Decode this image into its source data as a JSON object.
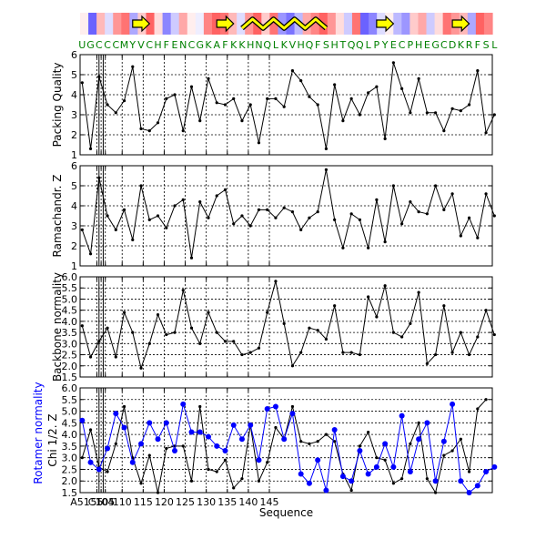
{
  "chart_data": {
    "type": "line",
    "sequence": "UGCCCMYVCHFENCGKAFKKHNQLKVHQFSHTQQLPYECPHEGCDKRFSL",
    "x_range": [
      51,
      149
    ],
    "sequence_label": "Sequence",
    "x_ticks": [
      {
        "value": 51,
        "label": "A51"
      },
      {
        "value": 55,
        "label": "55"
      },
      {
        "value": 56,
        "label": "C104"
      },
      {
        "value": 57,
        "label": "105"
      },
      {
        "value": 61,
        "label": "110"
      },
      {
        "value": 66,
        "label": "115"
      },
      {
        "value": 71,
        "label": "120"
      },
      {
        "value": 76,
        "label": "125"
      },
      {
        "value": 81,
        "label": "130"
      },
      {
        "value": 86,
        "label": "135"
      },
      {
        "value": 91,
        "label": "140"
      },
      {
        "value": 96,
        "label": "145"
      }
    ],
    "breaks": [
      55.5,
      56.5
    ],
    "secondary_structure": [
      {
        "type": "strand",
        "start": 57,
        "end": 59
      },
      {
        "type": "strand",
        "start": 67,
        "end": 69
      },
      {
        "type": "helix",
        "start": 70,
        "end": 80
      },
      {
        "type": "strand",
        "start": 86,
        "end": 88
      },
      {
        "type": "strand",
        "start": 95,
        "end": 97
      }
    ],
    "ribbon_values": [
      0.1,
      -0.9,
      0.4,
      -0.2,
      0.6,
      0.8,
      -0.5,
      0.3,
      0.9,
      0.2,
      -0.7,
      -0.3,
      0.5,
      0.1,
      -0.1,
      0.7,
      0.9,
      0.8,
      0.4,
      -0.2,
      0.6,
      0.9,
      0.3,
      0.8,
      -0.6,
      -0.8,
      -0.4,
      0.5,
      0.7,
      0.9,
      0.6,
      0.2,
      -0.3,
      0.8,
      -0.9,
      -0.7,
      -0.2,
      0.1,
      -0.4,
      -0.6,
      0.3,
      0.5,
      -0.3,
      0.2,
      0.8,
      0.6,
      0.4,
      -0.5,
      0.9,
      0.7
    ],
    "panels": [
      {
        "ylabel": "Packing Quality",
        "ylim": [
          1,
          6
        ],
        "yticks": [
          1,
          2,
          3,
          4,
          5,
          6
        ],
        "series": [
          {
            "color": "#000000",
            "values": [
              4.6,
              1.3,
              4.9,
              3.5,
              3.1,
              3.7,
              5.4,
              2.3,
              2.2,
              2.6,
              3.8,
              4.0,
              2.2,
              4.4,
              2.7,
              4.8,
              3.6,
              3.5,
              3.8,
              2.7,
              3.5,
              1.6,
              3.8,
              3.8,
              3.4,
              5.2,
              4.7,
              3.9,
              3.5,
              1.3,
              4.5,
              2.7,
              3.8,
              3.0,
              4.1,
              4.4,
              1.8,
              5.6,
              4.3,
              3.1,
              4.8,
              3.1,
              3.1,
              2.2,
              3.3,
              3.2,
              3.5,
              5.2,
              2.1,
              3.0
            ]
          }
        ]
      },
      {
        "ylabel": "Ramachandr. Z",
        "ylim": [
          1,
          6
        ],
        "yticks": [
          1,
          2,
          3,
          4,
          5,
          6
        ],
        "series": [
          {
            "color": "#000000",
            "values": [
              2.8,
              1.6,
              5.4,
              3.5,
              2.8,
              3.8,
              2.3,
              5.0,
              3.3,
              3.5,
              2.9,
              4.0,
              4.3,
              1.4,
              4.2,
              3.4,
              4.5,
              4.8,
              3.1,
              3.5,
              3.0,
              3.8,
              3.8,
              3.4,
              3.9,
              3.7,
              2.8,
              3.4,
              3.7,
              5.8,
              3.3,
              1.9,
              3.6,
              3.3,
              1.9,
              4.3,
              2.2,
              5.0,
              3.1,
              4.2,
              3.7,
              3.6,
              5.0,
              3.8,
              4.6,
              2.5,
              3.4,
              2.4,
              4.6,
              3.5
            ]
          }
        ]
      },
      {
        "ylabel": "Backbone normality",
        "ylim": [
          1.5,
          6.0
        ],
        "yticks": [
          1.5,
          2.0,
          2.5,
          3.0,
          3.5,
          4.0,
          4.5,
          5.0,
          5.5,
          6.0
        ],
        "series": [
          {
            "color": "#000000",
            "values": [
              3.8,
              2.4,
              3.1,
              3.7,
              2.4,
              4.4,
              3.5,
              1.9,
              3.0,
              4.3,
              3.4,
              3.5,
              5.4,
              3.7,
              3.0,
              4.4,
              3.5,
              3.1,
              3.1,
              2.5,
              2.6,
              2.8,
              4.4,
              5.8,
              3.9,
              2.0,
              2.6,
              3.7,
              3.6,
              3.2,
              4.7,
              2.6,
              2.6,
              2.5,
              5.1,
              4.2,
              5.6,
              3.5,
              3.3,
              3.9,
              5.3,
              2.1,
              2.5,
              4.7,
              2.6,
              3.5,
              2.5,
              3.3,
              4.5,
              3.4
            ]
          }
        ]
      },
      {
        "ylabel": "Chi 1/2. Z",
        "ylabel_extra": "Rotamer normality",
        "ylim": [
          1.5,
          6.0
        ],
        "yticks": [
          1.5,
          2.0,
          2.5,
          3.0,
          3.5,
          4.0,
          4.5,
          5.0,
          5.5,
          6.0
        ],
        "series": [
          {
            "color": "#000000",
            "values": [
              3.0,
              4.2,
              2.6,
              2.4,
              3.6,
              5.2,
              3.0,
              1.9,
              3.1,
              1.5,
              3.4,
              3.5,
              3.5,
              2.0,
              5.2,
              2.5,
              2.4,
              2.9,
              1.7,
              2.1,
              4.4,
              2.0,
              2.8,
              4.3,
              3.8,
              5.2,
              3.7,
              3.6,
              3.7,
              4.0,
              3.7,
              2.3,
              1.6,
              3.5,
              4.1,
              3.0,
              2.9,
              1.9,
              2.1,
              3.6,
              4.5,
              2.1,
              1.5,
              3.1,
              3.3,
              3.8,
              2.4,
              5.1,
              5.5,
              null
            ]
          },
          {
            "color": "#0000ff",
            "values": [
              4.6,
              2.8,
              2.5,
              3.4,
              4.9,
              4.3,
              2.8,
              3.6,
              4.5,
              3.8,
              4.5,
              3.3,
              5.3,
              4.1,
              4.1,
              3.9,
              3.5,
              3.3,
              4.4,
              3.8,
              4.4,
              2.9,
              5.1,
              5.2,
              3.8,
              4.9,
              2.3,
              1.9,
              2.9,
              1.6,
              4.2,
              2.2,
              2.0,
              3.3,
              2.3,
              2.6,
              3.6,
              2.6,
              4.8,
              2.4,
              3.8,
              4.5,
              2.0,
              3.7,
              5.3,
              2.0,
              1.5,
              1.8,
              2.4,
              2.6
            ]
          }
        ]
      }
    ]
  }
}
